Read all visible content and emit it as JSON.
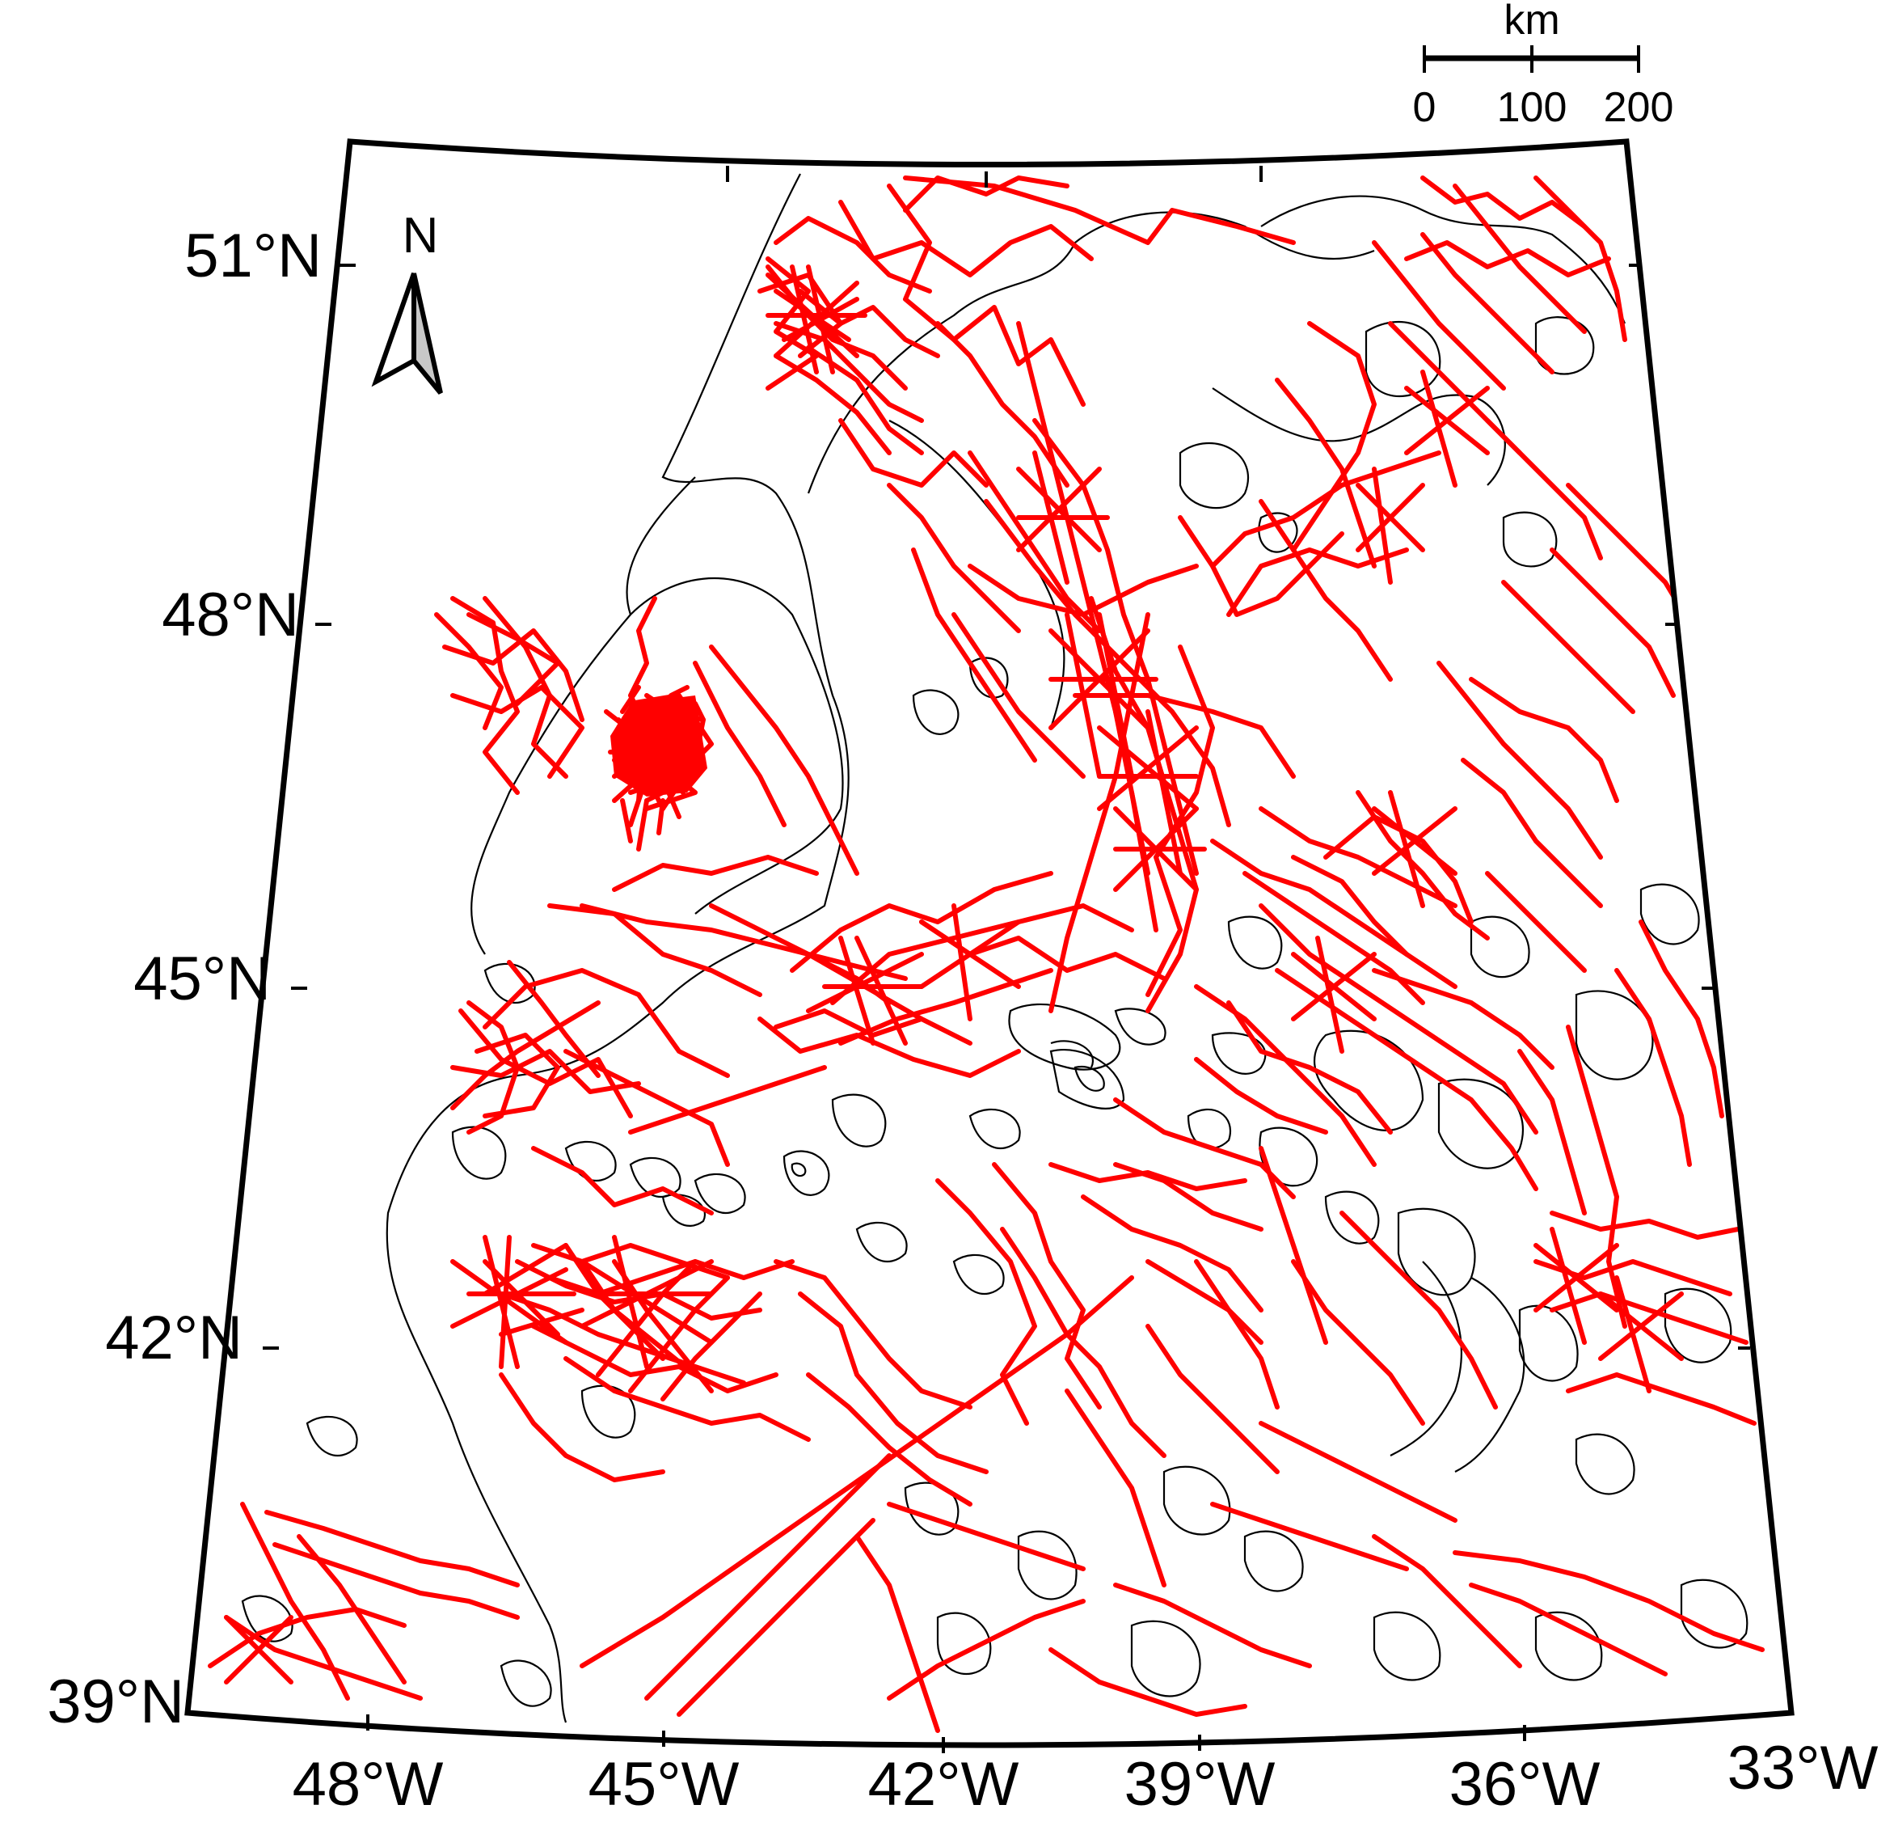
{
  "map": {
    "lat_labels": [
      "51°N",
      "48°N",
      "45°N",
      "42°N",
      "39°N"
    ],
    "lon_labels": [
      "48°W",
      "45°W",
      "42°W",
      "39°W",
      "36°W",
      "33°W"
    ],
    "north_label": "N",
    "scale": {
      "unit": "km",
      "ticks": [
        "0",
        "100",
        "200"
      ]
    },
    "colors": {
      "tracks": "#ff0000",
      "contours": "#000000",
      "north_arrow_fill": "#c8c8c8"
    }
  }
}
